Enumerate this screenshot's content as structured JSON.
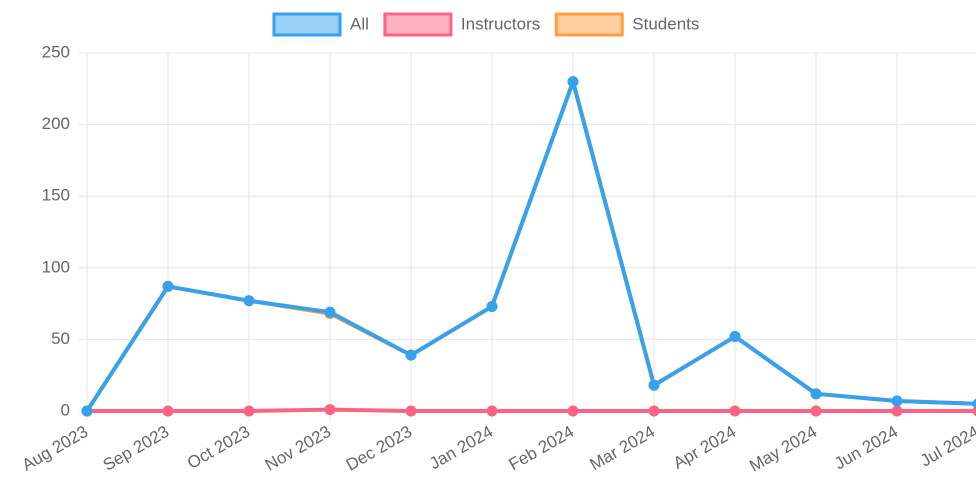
{
  "chart_data": {
    "type": "line",
    "categories": [
      "Aug 2023",
      "Sep 2023",
      "Oct 2023",
      "Nov 2023",
      "Dec 2023",
      "Jan 2024",
      "Feb 2024",
      "Mar 2024",
      "Apr 2024",
      "May 2024",
      "Jun 2024",
      "Jul 2024"
    ],
    "series": [
      {
        "name": "All",
        "color": "#36a2eb",
        "values": [
          0,
          87,
          77,
          69,
          39,
          73,
          230,
          18,
          52,
          12,
          7,
          5
        ]
      },
      {
        "name": "Instructors",
        "color": "#ff6384",
        "values": [
          0,
          0,
          0,
          1,
          0,
          0,
          0,
          0,
          0,
          0,
          0,
          0
        ]
      },
      {
        "name": "Students",
        "color": "#ff9f40",
        "values": [
          0,
          87,
          77,
          68,
          39,
          73,
          230,
          18,
          52,
          12,
          7,
          5
        ]
      }
    ],
    "ylim": [
      0,
      250
    ],
    "yticks": [
      0,
      50,
      100,
      150,
      200,
      250
    ],
    "grid": true,
    "legend": "top"
  }
}
